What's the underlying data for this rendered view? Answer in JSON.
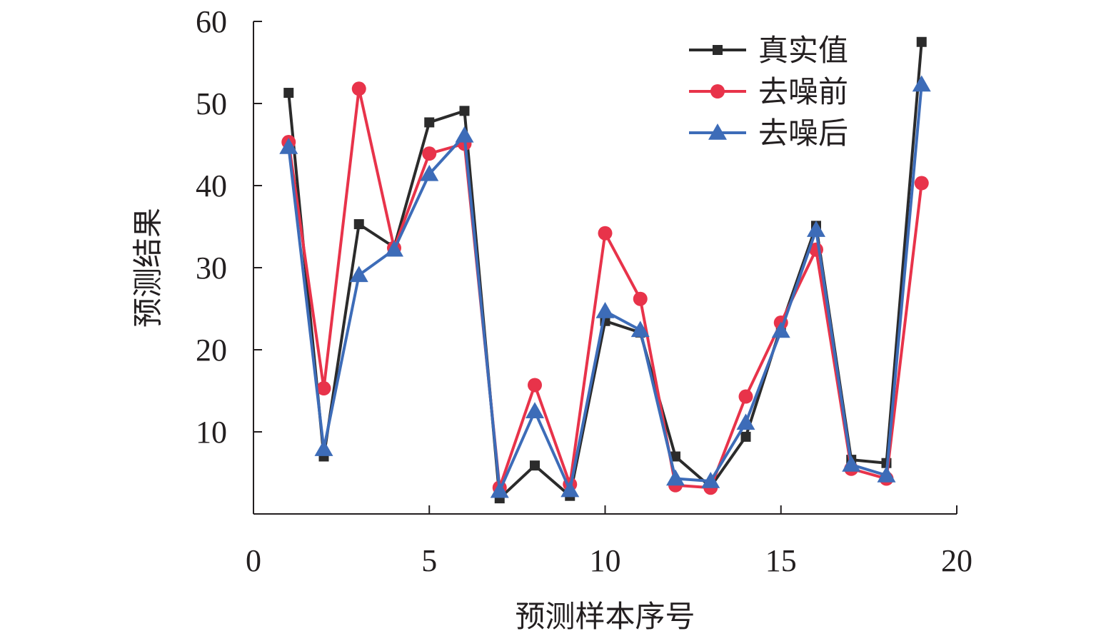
{
  "chart_data": {
    "type": "line",
    "xlabel": "预测样本序号",
    "ylabel": "预测结果",
    "xlim": [
      0,
      20
    ],
    "ylim": [
      0,
      60
    ],
    "xticks": [
      0,
      5,
      10,
      15,
      20
    ],
    "yticks": [
      10,
      20,
      30,
      40,
      50,
      60
    ],
    "grid": false,
    "legend_position": "top-right",
    "x": [
      1,
      2,
      3,
      4,
      5,
      6,
      7,
      8,
      9,
      10,
      11,
      12,
      13,
      14,
      15,
      16,
      17,
      18,
      19
    ],
    "series": [
      {
        "name": "真实值",
        "color": "#2b2b2b",
        "marker": "square",
        "values": [
          51.3,
          7.0,
          35.3,
          32.5,
          47.7,
          49.1,
          1.9,
          5.9,
          2.2,
          23.5,
          22.1,
          7.0,
          3.3,
          9.4,
          22.8,
          35.1,
          6.6,
          6.2,
          57.5
        ]
      },
      {
        "name": "去噪前",
        "color": "#e8334a",
        "marker": "circle",
        "values": [
          45.3,
          15.3,
          51.8,
          32.4,
          43.9,
          45.1,
          3.2,
          15.7,
          3.6,
          34.2,
          26.2,
          3.5,
          3.2,
          14.3,
          23.3,
          32.2,
          5.5,
          4.3,
          40.3
        ]
      },
      {
        "name": "去噪后",
        "color": "#3d6cb8",
        "marker": "triangle",
        "values": [
          44.7,
          7.9,
          29.1,
          32.2,
          41.4,
          46.1,
          2.8,
          12.5,
          2.9,
          24.7,
          22.4,
          4.3,
          4.0,
          11.1,
          22.3,
          34.6,
          6.0,
          4.7,
          52.3
        ]
      }
    ]
  }
}
